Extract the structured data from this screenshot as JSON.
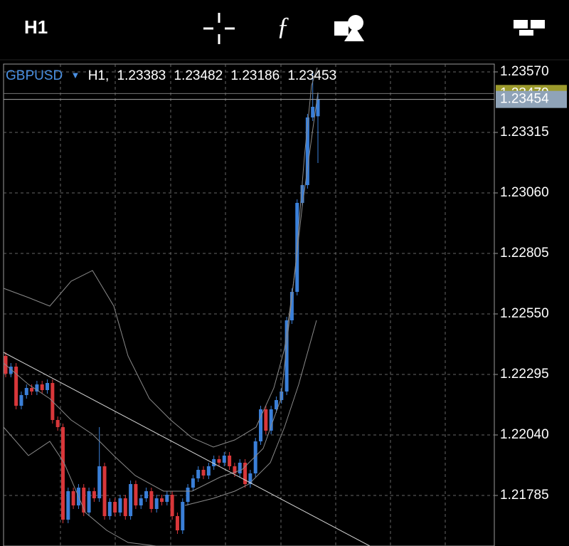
{
  "toolbar": {
    "timeframe": "H1"
  },
  "chart_header": {
    "symbol": "GBPUSD",
    "timeframe": "H1,",
    "ohlc": [
      1.23383,
      1.23482,
      1.23186,
      1.23453
    ]
  },
  "chart_data": {
    "type": "candlestick",
    "open": [
      1.22373,
      1.22298,
      1.22328,
      1.22163,
      1.22208,
      1.22238,
      1.22223,
      1.22253,
      1.22229,
      1.22259,
      1.22103,
      1.22073,
      1.21683,
      1.21803,
      1.21743,
      1.21818,
      1.21713,
      1.21803,
      1.21773,
      1.21908,
      1.21698,
      1.21758,
      1.21713,
      1.21773,
      1.21698,
      1.21833,
      1.21743,
      1.21773,
      1.21803,
      1.21728,
      1.21773,
      1.21758,
      1.21788,
      1.21698,
      1.21638,
      1.21758,
      1.21818,
      1.21857,
      1.21893,
      1.21869,
      1.21908,
      1.21938,
      1.21923,
      1.21953,
      1.21908,
      1.21878,
      1.21923,
      1.21833,
      1.21878,
      1.22013,
      1.22148,
      1.22058,
      1.22148,
      1.22187,
      1.22223,
      1.22523,
      1.22643,
      1.23018,
      1.23093,
      1.23378,
      1.23383
    ],
    "high": [
      1.22388,
      1.22343,
      1.22343,
      1.22223,
      1.22253,
      1.22253,
      1.22268,
      1.22268,
      1.22274,
      1.22274,
      1.22118,
      1.22088,
      1.21818,
      1.21818,
      1.21833,
      1.21833,
      1.21818,
      1.21818,
      1.22073,
      1.21923,
      1.21773,
      1.21773,
      1.21788,
      1.21788,
      1.21848,
      1.21848,
      1.21788,
      1.21818,
      1.21818,
      1.21788,
      1.21788,
      1.21803,
      1.21803,
      1.21713,
      1.21773,
      1.21833,
      1.21872,
      1.21908,
      1.21908,
      1.21923,
      1.21953,
      1.21953,
      1.21968,
      1.21968,
      1.21923,
      1.21938,
      1.21938,
      1.21893,
      1.22028,
      1.22163,
      1.22163,
      1.22163,
      1.22202,
      1.22238,
      1.22538,
      1.22658,
      1.23033,
      1.23108,
      1.23393,
      1.23573,
      1.23482
    ],
    "low": [
      1.22283,
      1.22283,
      1.22148,
      1.22148,
      1.22193,
      1.22208,
      1.22208,
      1.22214,
      1.22214,
      1.22088,
      1.22058,
      1.21668,
      1.21668,
      1.21728,
      1.21728,
      1.21698,
      1.21698,
      1.21758,
      1.21758,
      1.21683,
      1.21683,
      1.21698,
      1.21698,
      1.21683,
      1.21683,
      1.21728,
      1.21728,
      1.21758,
      1.21713,
      1.21713,
      1.21743,
      1.21743,
      1.21683,
      1.21623,
      1.21623,
      1.21743,
      1.21803,
      1.21842,
      1.21854,
      1.21854,
      1.21893,
      1.21908,
      1.21908,
      1.21893,
      1.21863,
      1.21863,
      1.21818,
      1.21818,
      1.21863,
      1.21998,
      1.22043,
      1.22043,
      1.22133,
      1.22172,
      1.22208,
      1.22508,
      1.22628,
      1.23003,
      1.23078,
      1.23363,
      1.23186
    ],
    "close": [
      1.22298,
      1.22328,
      1.22163,
      1.22208,
      1.22238,
      1.22223,
      1.22253,
      1.22229,
      1.22259,
      1.22103,
      1.22073,
      1.21683,
      1.21803,
      1.21743,
      1.21818,
      1.21713,
      1.21803,
      1.21773,
      1.21908,
      1.21698,
      1.21758,
      1.21713,
      1.21773,
      1.21698,
      1.21833,
      1.21743,
      1.21773,
      1.21803,
      1.21728,
      1.21773,
      1.21758,
      1.21788,
      1.21698,
      1.21638,
      1.21758,
      1.21818,
      1.21857,
      1.21893,
      1.21869,
      1.21908,
      1.21938,
      1.21923,
      1.21953,
      1.21908,
      1.21878,
      1.21923,
      1.21833,
      1.21878,
      1.22013,
      1.22148,
      1.22058,
      1.22148,
      1.22187,
      1.22223,
      1.22523,
      1.22643,
      1.23018,
      1.23093,
      1.23378,
      1.23423,
      1.23453
    ],
    "up_color": "#3a7fd8",
    "down_color": "#d8373a",
    "ylim": [
      1.21572,
      1.23603
    ],
    "yticks": [
      {
        "value": 1.2357,
        "label": "1.23570"
      },
      1.23315,
      {
        "value": 1.2306,
        "label": "1.23060"
      },
      1.22805,
      {
        "value": 1.2255,
        "label": "1.22550"
      },
      1.22295,
      {
        "value": 1.2204,
        "label": "1.22040"
      },
      1.21785
    ],
    "grid": true,
    "ask_price": 1.23479,
    "current_price": 1.23454
  }
}
